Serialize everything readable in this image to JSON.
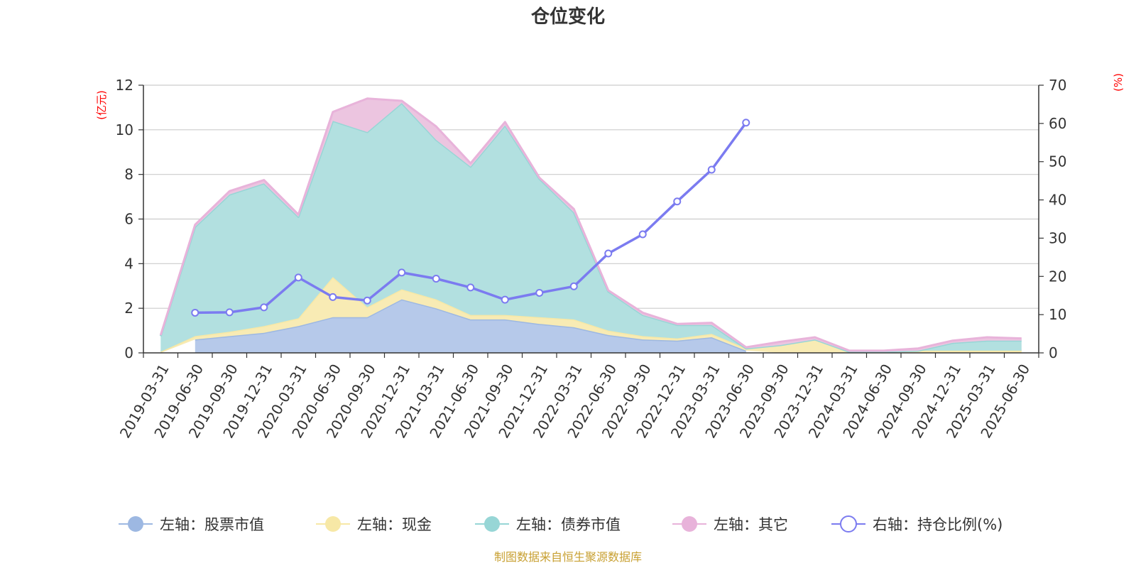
{
  "chart_data": {
    "type": "area",
    "title": "仓位变化",
    "left_axis_unit": "(亿元)",
    "right_axis_unit": "(%)",
    "left_ylim": [
      0,
      12
    ],
    "left_yticks": [
      0,
      2,
      4,
      6,
      8,
      10,
      12
    ],
    "right_ylim": [
      0,
      70
    ],
    "right_yticks": [
      0,
      10,
      20,
      30,
      40,
      50,
      60,
      70
    ],
    "grid": true,
    "legend_position": "bottom",
    "categories": [
      "2019-03-31",
      "2019-06-30",
      "2019-09-30",
      "2019-12-31",
      "2020-03-31",
      "2020-06-30",
      "2020-09-30",
      "2020-12-31",
      "2021-03-31",
      "2021-06-30",
      "2021-09-30",
      "2021-12-31",
      "2022-03-31",
      "2022-06-30",
      "2022-09-30",
      "2022-12-31",
      "2023-03-31",
      "2023-06-30",
      "2023-09-30",
      "2023-12-31",
      "2024-03-31",
      "2024-06-30",
      "2024-09-30",
      "2024-12-31",
      "2025-03-31",
      "2025-06-30"
    ],
    "series": [
      {
        "name": "左轴：股票市值",
        "axis": "left",
        "kind": "stack-area",
        "color": "#9db8e2",
        "fill": "#b6c9ea",
        "values": [
          null,
          0.6,
          0.75,
          0.9,
          1.2,
          1.6,
          1.6,
          2.4,
          2.0,
          1.5,
          1.5,
          1.3,
          1.15,
          0.8,
          0.6,
          0.55,
          0.7,
          0.1,
          null,
          null,
          null,
          null,
          null,
          null,
          null,
          null
        ]
      },
      {
        "name": "左轴：现金",
        "axis": "left",
        "kind": "stack-area",
        "color": "#f7e8a6",
        "fill": "#f8ebb4",
        "values": [
          0.05,
          0.15,
          0.2,
          0.3,
          0.35,
          1.8,
          0.45,
          0.45,
          0.4,
          0.2,
          0.2,
          0.3,
          0.35,
          0.2,
          0.15,
          0.1,
          0.15,
          0.1,
          0.35,
          0.6,
          0.05,
          0.05,
          0.1,
          0.1,
          0.1,
          0.1
        ]
      },
      {
        "name": "左轴：债券市值",
        "axis": "left",
        "kind": "stack-area",
        "color": "#97d6d6",
        "fill": "#b2e0e0",
        "values": [
          0.7,
          4.9,
          6.15,
          6.4,
          4.55,
          7.0,
          7.85,
          8.35,
          7.15,
          6.65,
          8.5,
          6.2,
          4.8,
          1.75,
          0.95,
          0.6,
          0.4,
          0.0,
          0.0,
          0.0,
          0.0,
          0.0,
          0.0,
          0.35,
          0.45,
          0.45
        ]
      },
      {
        "name": "左轴：其它",
        "axis": "left",
        "kind": "stack-area",
        "color": "#e8b3da",
        "fill": "#ecc5e0",
        "values": [
          0.05,
          0.1,
          0.15,
          0.15,
          0.1,
          0.4,
          1.5,
          0.1,
          0.6,
          0.15,
          0.15,
          0.05,
          0.15,
          0.05,
          0.1,
          0.05,
          0.1,
          0.05,
          0.15,
          0.1,
          0.05,
          0.05,
          0.1,
          0.1,
          0.15,
          0.1
        ]
      },
      {
        "name": "右轴：持仓比例(%)",
        "axis": "right",
        "kind": "line",
        "color": "#7b7bf0",
        "values": [
          null,
          10.5,
          10.6,
          11.9,
          19.7,
          14.6,
          13.7,
          21.0,
          19.4,
          17.1,
          13.9,
          15.7,
          17.4,
          26.0,
          31.0,
          39.6,
          47.9,
          60.2,
          null,
          null,
          null,
          null,
          null,
          null,
          null,
          null
        ]
      }
    ],
    "source": "制图数据来自恒生聚源数据库"
  }
}
